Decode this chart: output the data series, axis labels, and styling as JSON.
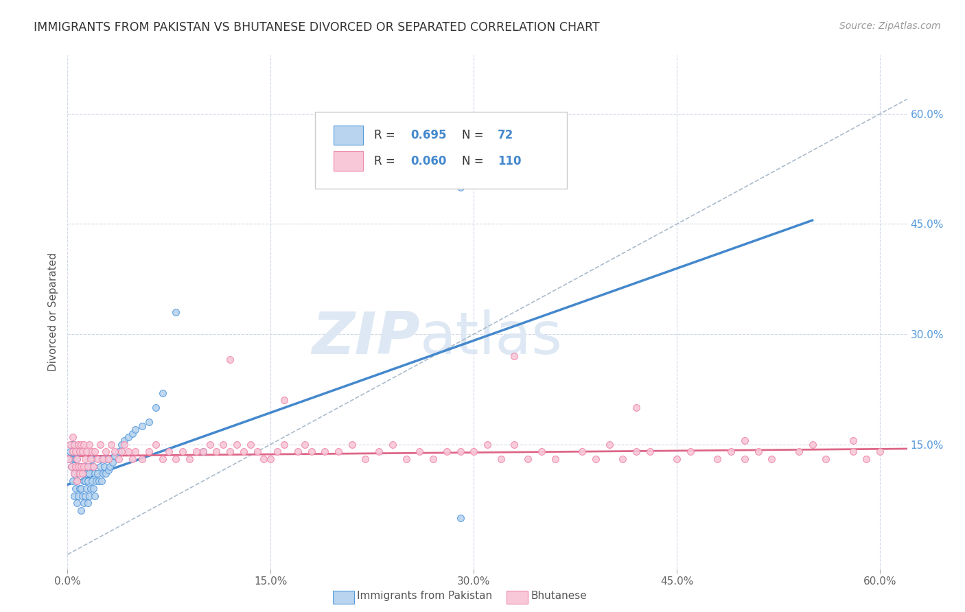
{
  "title": "IMMIGRANTS FROM PAKISTAN VS BHUTANESE DIVORCED OR SEPARATED CORRELATION CHART",
  "source": "Source: ZipAtlas.com",
  "ylabel": "Divorced or Separated",
  "xlim": [
    0.0,
    0.62
  ],
  "ylim": [
    -0.02,
    0.68
  ],
  "xtick_vals": [
    0.0,
    0.15,
    0.3,
    0.45,
    0.6
  ],
  "ytick_vals_right": [
    0.15,
    0.3,
    0.45,
    0.6
  ],
  "blue_R": 0.695,
  "blue_N": 72,
  "pink_R": 0.06,
  "pink_N": 110,
  "blue_fill_color": "#b8d4ee",
  "pink_fill_color": "#f8c8d8",
  "blue_edge_color": "#5599dd",
  "pink_edge_color": "#ee88aa",
  "blue_line_color": "#4488cc",
  "pink_line_color": "#dd6688",
  "dashed_line_color": "#aabbcc",
  "watermark_zip": "ZIP",
  "watermark_atlas": "atlas",
  "watermark_color": "#dde8f4",
  "legend_label_blue": "Immigrants from Pakistan",
  "legend_label_pink": "Bhutanese",
  "title_fontsize": 12.5,
  "source_fontsize": 10,
  "blue_scatter_x": [
    0.001,
    0.002,
    0.003,
    0.003,
    0.004,
    0.004,
    0.005,
    0.005,
    0.005,
    0.005,
    0.006,
    0.006,
    0.007,
    0.007,
    0.007,
    0.008,
    0.008,
    0.008,
    0.009,
    0.009,
    0.01,
    0.01,
    0.01,
    0.011,
    0.011,
    0.012,
    0.012,
    0.013,
    0.013,
    0.013,
    0.014,
    0.014,
    0.015,
    0.015,
    0.016,
    0.016,
    0.017,
    0.017,
    0.018,
    0.018,
    0.019,
    0.019,
    0.02,
    0.02,
    0.021,
    0.022,
    0.023,
    0.024,
    0.025,
    0.025,
    0.026,
    0.027,
    0.028,
    0.029,
    0.03,
    0.031,
    0.033,
    0.035,
    0.038,
    0.04,
    0.042,
    0.045,
    0.048,
    0.05,
    0.055,
    0.06,
    0.065,
    0.07,
    0.08,
    0.1,
    0.29,
    0.29
  ],
  "blue_scatter_y": [
    0.13,
    0.14,
    0.12,
    0.15,
    0.1,
    0.13,
    0.08,
    0.11,
    0.13,
    0.15,
    0.09,
    0.13,
    0.07,
    0.1,
    0.13,
    0.08,
    0.11,
    0.14,
    0.09,
    0.12,
    0.06,
    0.09,
    0.12,
    0.08,
    0.11,
    0.07,
    0.1,
    0.08,
    0.1,
    0.12,
    0.09,
    0.11,
    0.07,
    0.1,
    0.08,
    0.11,
    0.09,
    0.12,
    0.1,
    0.13,
    0.09,
    0.12,
    0.08,
    0.11,
    0.1,
    0.11,
    0.1,
    0.12,
    0.1,
    0.13,
    0.11,
    0.12,
    0.11,
    0.13,
    0.115,
    0.12,
    0.125,
    0.135,
    0.14,
    0.15,
    0.155,
    0.16,
    0.165,
    0.17,
    0.175,
    0.18,
    0.2,
    0.22,
    0.33,
    0.14,
    0.5,
    0.05
  ],
  "pink_scatter_x": [
    0.001,
    0.002,
    0.003,
    0.004,
    0.004,
    0.005,
    0.005,
    0.006,
    0.006,
    0.007,
    0.007,
    0.008,
    0.008,
    0.009,
    0.009,
    0.01,
    0.01,
    0.011,
    0.011,
    0.012,
    0.012,
    0.013,
    0.014,
    0.015,
    0.016,
    0.017,
    0.018,
    0.019,
    0.02,
    0.022,
    0.024,
    0.026,
    0.028,
    0.03,
    0.032,
    0.035,
    0.038,
    0.04,
    0.042,
    0.045,
    0.048,
    0.05,
    0.055,
    0.06,
    0.065,
    0.07,
    0.075,
    0.08,
    0.085,
    0.09,
    0.095,
    0.1,
    0.105,
    0.11,
    0.115,
    0.12,
    0.125,
    0.13,
    0.135,
    0.14,
    0.145,
    0.15,
    0.155,
    0.16,
    0.17,
    0.175,
    0.18,
    0.19,
    0.2,
    0.21,
    0.22,
    0.23,
    0.24,
    0.25,
    0.26,
    0.27,
    0.28,
    0.29,
    0.3,
    0.31,
    0.32,
    0.33,
    0.34,
    0.35,
    0.36,
    0.38,
    0.39,
    0.4,
    0.41,
    0.42,
    0.43,
    0.45,
    0.46,
    0.48,
    0.49,
    0.5,
    0.51,
    0.52,
    0.54,
    0.55,
    0.56,
    0.58,
    0.59,
    0.6,
    0.12,
    0.16,
    0.33,
    0.42,
    0.5,
    0.58
  ],
  "pink_scatter_y": [
    0.13,
    0.15,
    0.12,
    0.14,
    0.16,
    0.11,
    0.15,
    0.12,
    0.14,
    0.1,
    0.13,
    0.12,
    0.15,
    0.11,
    0.14,
    0.12,
    0.15,
    0.11,
    0.14,
    0.12,
    0.15,
    0.13,
    0.14,
    0.12,
    0.15,
    0.13,
    0.14,
    0.12,
    0.14,
    0.13,
    0.15,
    0.13,
    0.14,
    0.13,
    0.15,
    0.14,
    0.13,
    0.14,
    0.15,
    0.14,
    0.13,
    0.14,
    0.13,
    0.14,
    0.15,
    0.13,
    0.14,
    0.13,
    0.14,
    0.13,
    0.14,
    0.14,
    0.15,
    0.14,
    0.15,
    0.14,
    0.15,
    0.14,
    0.15,
    0.14,
    0.13,
    0.13,
    0.14,
    0.15,
    0.14,
    0.15,
    0.14,
    0.14,
    0.14,
    0.15,
    0.13,
    0.14,
    0.15,
    0.13,
    0.14,
    0.13,
    0.14,
    0.14,
    0.14,
    0.15,
    0.13,
    0.15,
    0.13,
    0.14,
    0.13,
    0.14,
    0.13,
    0.15,
    0.13,
    0.14,
    0.14,
    0.13,
    0.14,
    0.13,
    0.14,
    0.13,
    0.14,
    0.13,
    0.14,
    0.15,
    0.13,
    0.14,
    0.13,
    0.14,
    0.265,
    0.21,
    0.27,
    0.2,
    0.155,
    0.155
  ],
  "blue_line_x": [
    0.0,
    0.55
  ],
  "blue_line_y": [
    0.095,
    0.455
  ],
  "pink_line_x": [
    0.0,
    0.62
  ],
  "pink_line_y": [
    0.134,
    0.144
  ],
  "dashed_line_x": [
    0.0,
    0.62
  ],
  "dashed_line_y": [
    0.0,
    0.62
  ],
  "background_color": "#ffffff",
  "grid_color": "#d0d8e8"
}
